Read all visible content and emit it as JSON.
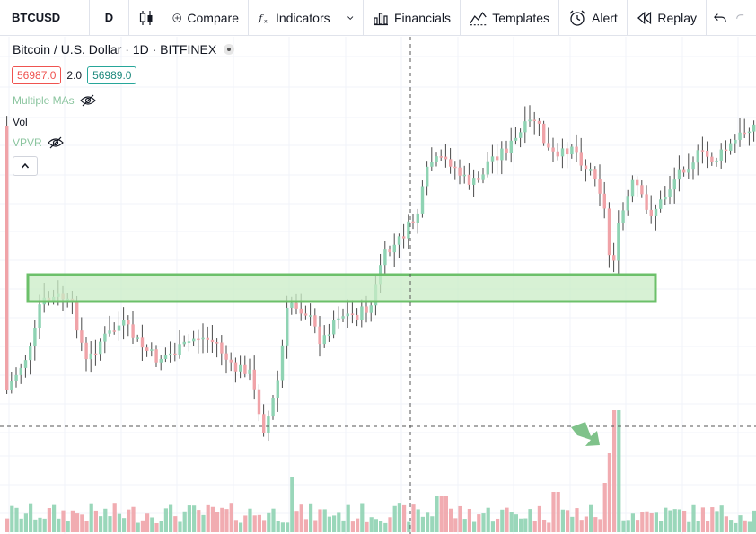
{
  "toolbar": {
    "symbol": "BTCUSD",
    "resolution": "D",
    "compare": "Compare",
    "indicators": "Indicators",
    "financials": "Financials",
    "templates": "Templates",
    "alert": "Alert",
    "replay": "Replay"
  },
  "legend": {
    "title": "Bitcoin / U.S. Dollar · 1D · BITFINEX",
    "bid": "56987.0",
    "spread": "2.0",
    "ask": "56989.0",
    "indicators": [
      {
        "label": "Multiple MAs",
        "hidden": true
      },
      {
        "label": "Vol",
        "hidden": false
      },
      {
        "label": "VPVR",
        "hidden": true
      }
    ]
  },
  "colors": {
    "up": "#8fd3b3",
    "down": "#f0a3a8",
    "zone_fill": "#c9ecc6",
    "zone_stroke": "#6cc06a",
    "arrow": "#7fc28a"
  },
  "chart_data": {
    "type": "candlestick",
    "zone": "support/resistance rectangle",
    "crosshair": true
  }
}
